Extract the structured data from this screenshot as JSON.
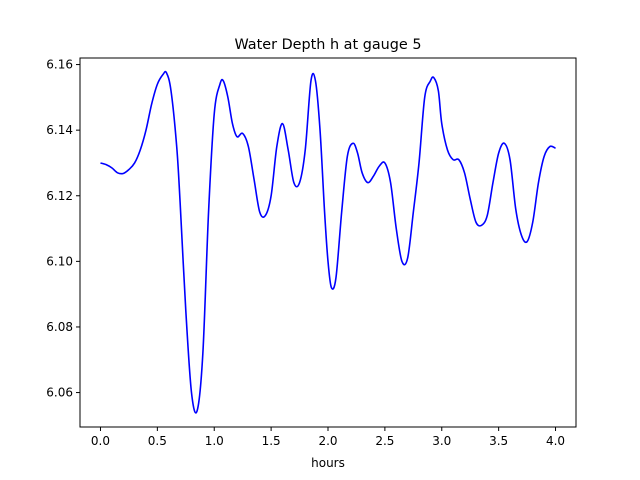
{
  "chart_data": {
    "type": "line",
    "title": "Water Depth h at gauge 5",
    "xlabel": "hours",
    "ylabel": "",
    "xlim": [
      -0.18,
      4.18
    ],
    "ylim": [
      6.0495,
      6.162
    ],
    "xticks": [
      0.0,
      0.5,
      1.0,
      1.5,
      2.0,
      2.5,
      3.0,
      3.5,
      4.0
    ],
    "xtick_labels": [
      "0.0",
      "0.5",
      "1.0",
      "1.5",
      "2.0",
      "2.5",
      "3.0",
      "3.5",
      "4.0"
    ],
    "yticks": [
      6.06,
      6.08,
      6.1,
      6.12,
      6.14,
      6.16
    ],
    "ytick_labels": [
      "6.06",
      "6.08",
      "6.10",
      "6.12",
      "6.14",
      "6.16"
    ],
    "grid": false,
    "legend": "none",
    "series": [
      {
        "color": "#0000ff",
        "x": [
          0.0,
          0.05,
          0.1,
          0.15,
          0.2,
          0.25,
          0.3,
          0.35,
          0.4,
          0.45,
          0.5,
          0.55,
          0.58,
          0.62,
          0.67,
          0.7,
          0.75,
          0.8,
          0.85,
          0.9,
          0.95,
          1.0,
          1.05,
          1.08,
          1.12,
          1.16,
          1.2,
          1.25,
          1.3,
          1.35,
          1.4,
          1.45,
          1.5,
          1.55,
          1.6,
          1.65,
          1.7,
          1.75,
          1.8,
          1.85,
          1.89,
          1.93,
          1.97,
          2.0,
          2.03,
          2.07,
          2.12,
          2.17,
          2.22,
          2.26,
          2.3,
          2.35,
          2.4,
          2.45,
          2.5,
          2.55,
          2.6,
          2.65,
          2.7,
          2.75,
          2.8,
          2.85,
          2.9,
          2.93,
          2.97,
          3.0,
          3.05,
          3.1,
          3.15,
          3.2,
          3.25,
          3.3,
          3.35,
          3.4,
          3.45,
          3.5,
          3.55,
          3.6,
          3.65,
          3.7,
          3.75,
          3.8,
          3.85,
          3.9,
          3.95,
          4.0
        ],
        "y": [
          6.13,
          6.1295,
          6.1285,
          6.127,
          6.1268,
          6.128,
          6.13,
          6.134,
          6.14,
          6.148,
          6.154,
          6.157,
          6.1575,
          6.152,
          6.135,
          6.118,
          6.085,
          6.06,
          6.0545,
          6.072,
          6.115,
          6.145,
          6.154,
          6.155,
          6.15,
          6.142,
          6.138,
          6.139,
          6.135,
          6.125,
          6.115,
          6.114,
          6.12,
          6.135,
          6.142,
          6.134,
          6.124,
          6.124,
          6.134,
          6.155,
          6.155,
          6.14,
          6.115,
          6.1,
          6.092,
          6.095,
          6.115,
          6.132,
          6.136,
          6.133,
          6.127,
          6.124,
          6.126,
          6.129,
          6.13,
          6.124,
          6.11,
          6.1,
          6.101,
          6.115,
          6.13,
          6.15,
          6.155,
          6.156,
          6.152,
          6.142,
          6.134,
          6.131,
          6.131,
          6.127,
          6.119,
          6.112,
          6.111,
          6.114,
          6.124,
          6.133,
          6.136,
          6.131,
          6.116,
          6.108,
          6.106,
          6.112,
          6.124,
          6.132,
          6.135,
          6.1345
        ]
      }
    ]
  }
}
